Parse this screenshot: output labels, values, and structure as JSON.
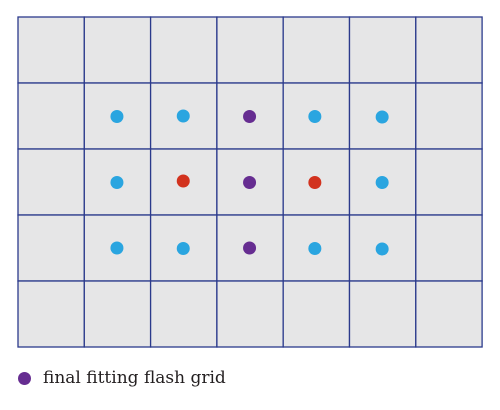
{
  "grid": {
    "columns": 7,
    "rows": 5,
    "cell_fill": "#e6e6e7",
    "line_color": "#2b3a8c"
  },
  "colors": {
    "blue": "#2aa5e0",
    "purple": "#662d91",
    "red": "#d2321e"
  },
  "points": [
    {
      "col": 1,
      "row": 1,
      "color": "blue"
    },
    {
      "col": 2,
      "row": 1,
      "color": "blue"
    },
    {
      "col": 3,
      "row": 1,
      "color": "purple"
    },
    {
      "col": 4,
      "row": 1,
      "color": "blue"
    },
    {
      "col": 5,
      "row": 1,
      "color": "blue"
    },
    {
      "col": 1,
      "row": 2,
      "color": "blue"
    },
    {
      "col": 2,
      "row": 2,
      "color": "red"
    },
    {
      "col": 3,
      "row": 2,
      "color": "purple"
    },
    {
      "col": 4,
      "row": 2,
      "color": "red"
    },
    {
      "col": 5,
      "row": 2,
      "color": "blue"
    },
    {
      "col": 1,
      "row": 3,
      "color": "blue"
    },
    {
      "col": 2,
      "row": 3,
      "color": "blue"
    },
    {
      "col": 3,
      "row": 3,
      "color": "purple"
    },
    {
      "col": 4,
      "row": 3,
      "color": "blue"
    },
    {
      "col": 5,
      "row": 3,
      "color": "blue"
    }
  ],
  "legend": {
    "label": "final fitting flash grid",
    "color": "purple"
  }
}
